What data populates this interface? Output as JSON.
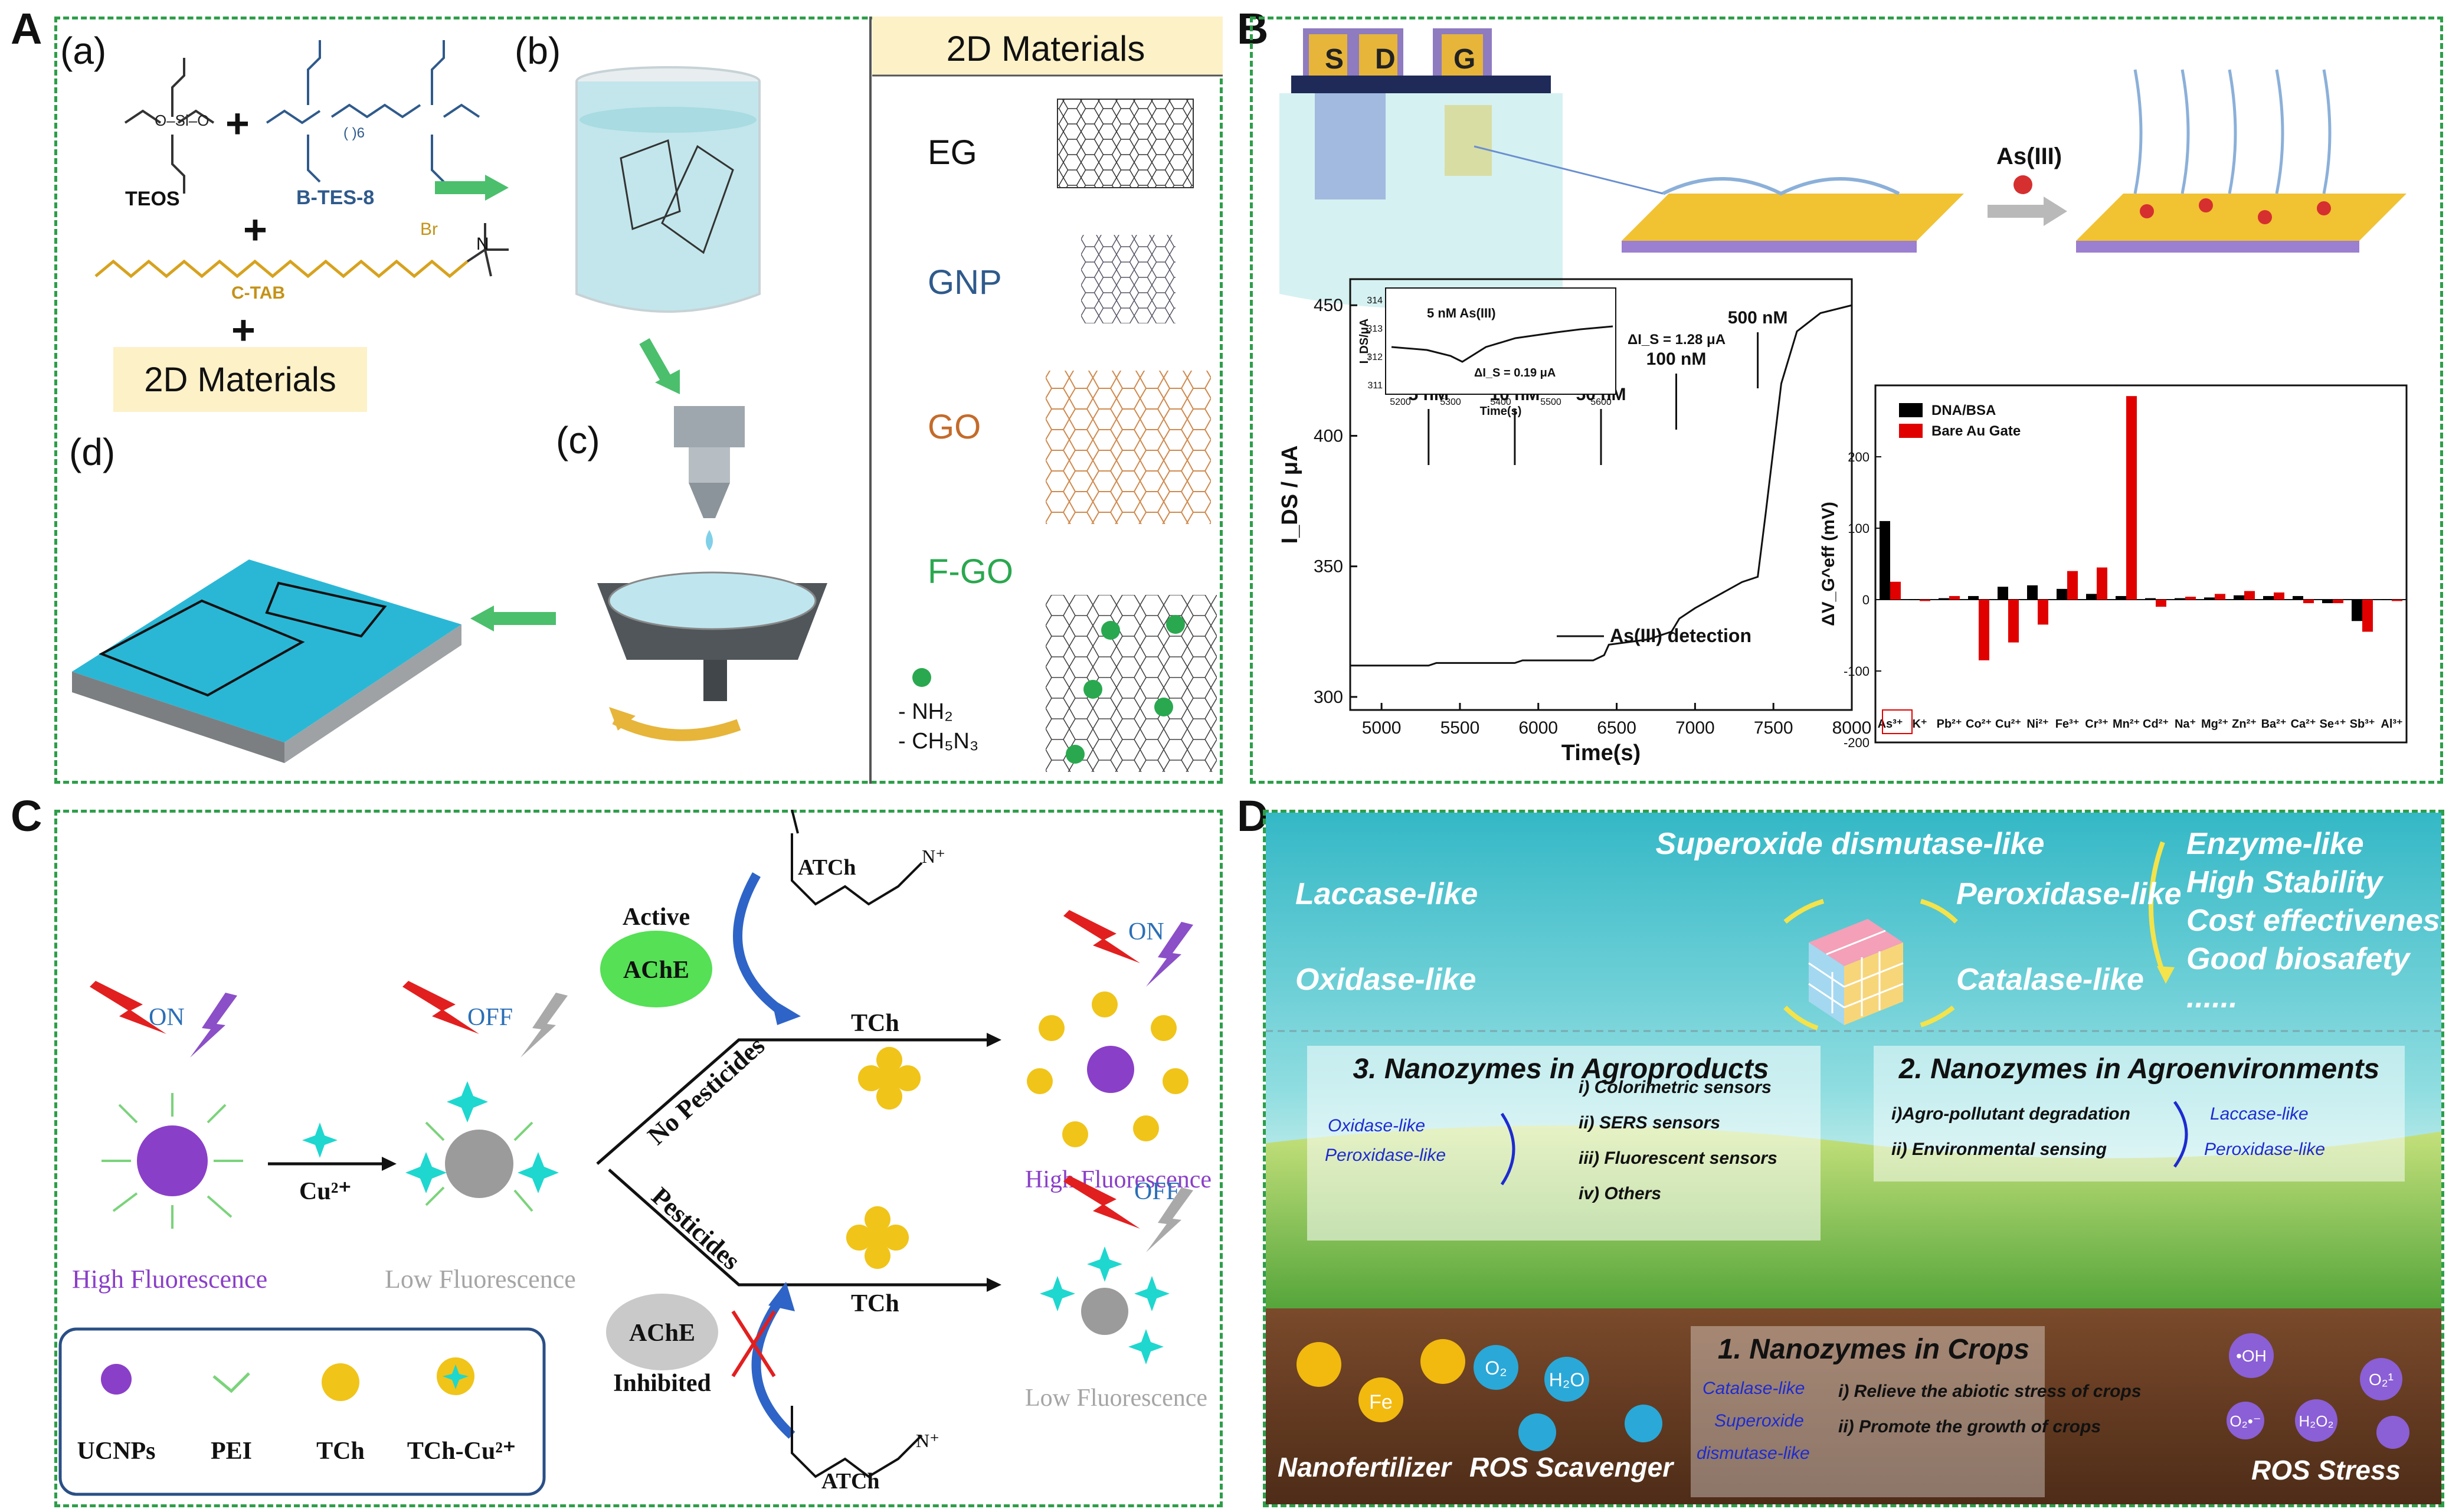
{
  "panel_labels": {
    "A": "A",
    "B": "B",
    "C": "C",
    "D": "D"
  },
  "panelA": {
    "sub_a": "(a)",
    "sub_b": "(b)",
    "sub_c": "(c)",
    "sub_d": "(d)",
    "teos": "TEOS",
    "btes8": "B-TES-8",
    "ctab": "C-TAB",
    "br": "Br",
    "plus": "+",
    "materials_box": "2D Materials",
    "list_header": "2D Materials",
    "materials": [
      "EG",
      "GNP",
      "GO",
      "F-GO"
    ],
    "nh2": "- NH₂",
    "ch5n3": "- CH₅N₃",
    "colors": {
      "eg": "#111111",
      "gnp": "#2f5a8c",
      "go": "#c46b2a",
      "fgo": "#2aa84f",
      "yellow_box": "#fdf1c8"
    }
  },
  "panelB": {
    "electrodes": [
      "S",
      "D",
      "G"
    ],
    "arrow_label": "As(III)",
    "chart1_data": {
      "type": "line",
      "xlabel": "Time(s)",
      "ylabel": "I_DS / μA",
      "xlim": [
        4800,
        8000
      ],
      "ylim": [
        295,
        460
      ],
      "xticks": [
        5000,
        5500,
        6000,
        6500,
        7000,
        7500,
        8000
      ],
      "yticks": [
        300,
        350,
        400,
        450
      ],
      "annotations": [
        "5 nM",
        "10 nM",
        "50 nM",
        "100 nM",
        "500 nM"
      ],
      "legend": "As(III) detection",
      "x": [
        4800,
        5300,
        5350,
        5850,
        5900,
        6350,
        6420,
        6450,
        6700,
        6850,
        6900,
        7000,
        7300,
        7400,
        7450,
        7550,
        7650,
        7800,
        8000
      ],
      "y": [
        312,
        312,
        313,
        313,
        314,
        314,
        316,
        320,
        322,
        325,
        330,
        334,
        344,
        346,
        370,
        420,
        440,
        447,
        450
      ],
      "inset": {
        "xlabel": "Time(s)",
        "ylabel": "I_DS/μA",
        "xticks": [
          5200,
          5300,
          5400,
          5500,
          5600
        ],
        "yticks": [
          311,
          312,
          313,
          314
        ],
        "label": "5 nM As(III)",
        "delta1": "ΔI_S = 1.28 μA",
        "delta2": "ΔI_S = 0.19 μA"
      }
    },
    "chart2_data": {
      "type": "bar",
      "ylabel": "ΔV_G^eff (mV)",
      "ylim": [
        -200,
        300
      ],
      "yticks": [
        -200,
        -100,
        0,
        100,
        200
      ],
      "categories": [
        "As³⁺",
        "K⁺",
        "Pb²⁺",
        "Co²⁺",
        "Cu²⁺",
        "Ni²⁺",
        "Fe³⁺",
        "Cr³⁺",
        "Mn²⁺",
        "Cd²⁺",
        "Na⁺",
        "Mg²⁺",
        "Zn²⁺",
        "Ba²⁺",
        "Ca²⁺",
        "Se⁴⁺",
        "Sb³⁺",
        "Al³⁺"
      ],
      "series": [
        {
          "name": "DNA/BSA",
          "color": "#000000",
          "values": [
            110,
            0,
            2,
            5,
            18,
            20,
            15,
            8,
            5,
            2,
            2,
            3,
            6,
            5,
            5,
            -5,
            -30,
            0
          ]
        },
        {
          "name": "Bare Au Gate",
          "color": "#e00000",
          "values": [
            25,
            -2,
            5,
            -85,
            -60,
            -35,
            40,
            45,
            285,
            -10,
            4,
            8,
            12,
            10,
            -5,
            -5,
            -45,
            -2
          ]
        }
      ]
    }
  },
  "panelC": {
    "on": "ON",
    "off": "OFF",
    "cu": "Cu²⁺",
    "high_fl": "High Fluorescence",
    "low_fl": "Low Fluorescence",
    "atch": "ATCh",
    "tch": "TCh",
    "active": "Active",
    "ache": "AChE",
    "inhibited": "Inhibited",
    "no_pesticides": "No Pesticides",
    "pesticides": "Pesticides",
    "nplus": "N⁺",
    "legend": [
      "UCNPs",
      "PEI",
      "TCh",
      "TCh-Cu²⁺"
    ]
  },
  "panelD": {
    "enzymes": [
      "Superoxide dismutase-like",
      "Laccase-like",
      "Peroxidase-like",
      "Oxidase-like",
      "Catalase-like"
    ],
    "props": [
      "Enzyme-like",
      "High Stability",
      "Cost effectiveness",
      "Good biosafety",
      "......"
    ],
    "agro": {
      "title": "3. Nanozymes in Agroproducts",
      "left": [
        "Oxidase-like",
        "Peroxidase-like"
      ],
      "items": [
        "i) Colorimetric sensors",
        "ii) SERS sensors",
        "iii) Fluorescent sensors",
        "iv) Others"
      ]
    },
    "env": {
      "title": "2. Nanozymes in Agroenvironments",
      "right": [
        "Laccase-like",
        "Peroxidase-like"
      ],
      "items": [
        "i)Agro-pollutant degradation",
        "ii) Environmental sensing"
      ]
    },
    "crops": {
      "title": "1. Nanozymes in Crops",
      "left": [
        "Catalase-like",
        "Superoxide",
        "dismutase-like"
      ],
      "items": [
        "i) Relieve the abiotic stress of crops",
        "ii) Promote the growth of crops"
      ]
    },
    "bottom": [
      "Nanofertilizer",
      "ROS Scavenger",
      "ROS Stress"
    ],
    "particles": [
      "Fe",
      "O₂",
      "H₂O",
      "•OH",
      "O₂¹",
      "O₂•⁻",
      "H₂O₂"
    ]
  }
}
